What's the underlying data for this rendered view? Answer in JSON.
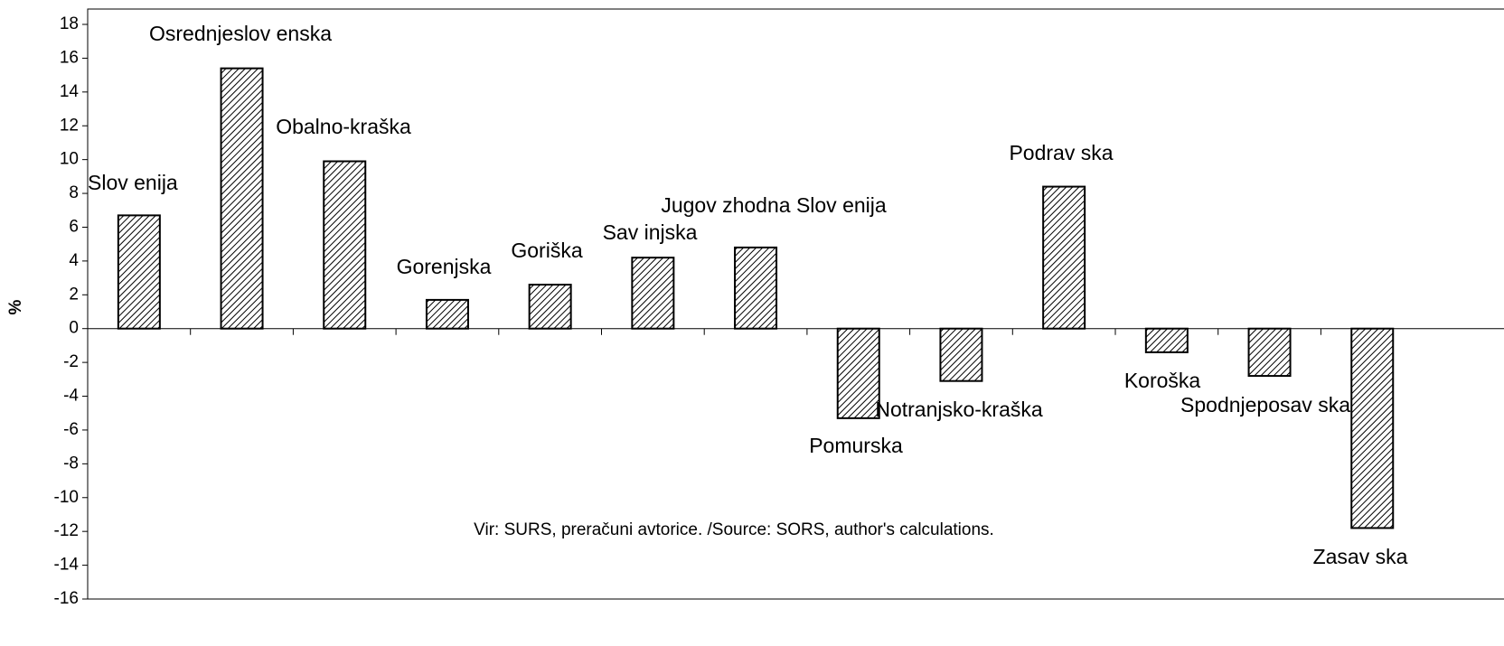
{
  "chart_data": {
    "type": "bar",
    "categories": [
      "Slov enija",
      "Osrednjeslov enska",
      "Obalno-kraška",
      "Gorenjska",
      "Goriška",
      "Sav injska",
      "Jugov zhodna Slov enija",
      "Pomurska",
      "Notranjsko-kraška",
      "Podrav ska",
      "Koroška",
      "Spodnjeposav ska",
      "Zasav ska"
    ],
    "values": [
      6.7,
      15.4,
      9.9,
      1.7,
      2.6,
      4.2,
      4.8,
      -5.3,
      -3.1,
      8.4,
      -1.4,
      -2.8,
      -11.8
    ],
    "ylabel": "%",
    "annotation": "Vir: SURS, preračuni avtorice. /Source: SORS, author's calculations.",
    "ylim": [
      -16,
      18
    ],
    "yticks": [
      -16,
      -14,
      -12,
      -10,
      -8,
      -6,
      -4,
      -2,
      0,
      2,
      4,
      6,
      8,
      10,
      12,
      14,
      16,
      18
    ]
  }
}
